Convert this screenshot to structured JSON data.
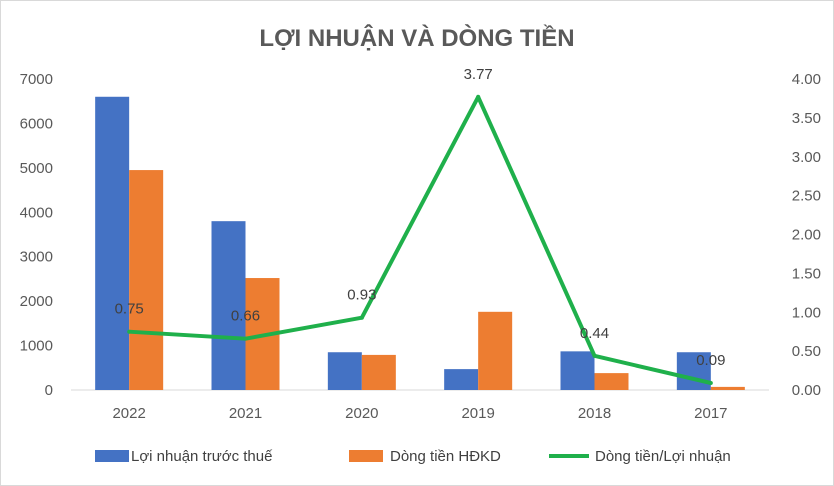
{
  "chart_data": {
    "type": "bar",
    "title": "LỢI NHUẬN VÀ DÒNG TIỀN",
    "categories": [
      "2022",
      "2021",
      "2020",
      "2019",
      "2018",
      "2017"
    ],
    "series": [
      {
        "name": "Lợi nhuận trước thuế",
        "type": "bar",
        "axis": "left",
        "color": "#4472c4",
        "values": [
          6600,
          3800,
          850,
          470,
          870,
          850
        ]
      },
      {
        "name": "Dòng tiền HĐKD",
        "type": "bar",
        "axis": "left",
        "color": "#ed7d31",
        "values": [
          4950,
          2520,
          790,
          1760,
          380,
          70
        ]
      },
      {
        "name": "Dòng tiền/Lợi nhuận",
        "type": "line",
        "axis": "right",
        "color": "#1fb04b",
        "values": [
          0.75,
          0.66,
          0.93,
          3.77,
          0.44,
          0.09
        ],
        "labels": [
          "0.75",
          "0.66",
          "0.93",
          "3.77",
          "0.44",
          "0.09"
        ]
      }
    ],
    "y_left": {
      "min": 0,
      "max": 7000,
      "ticks": [
        "0",
        "1000",
        "2000",
        "3000",
        "4000",
        "5000",
        "6000",
        "7000"
      ]
    },
    "y_right": {
      "min": 0,
      "max": 4,
      "ticks": [
        "0.00",
        "0.50",
        "1.00",
        "1.50",
        "2.00",
        "2.50",
        "3.00",
        "3.50",
        "4.00"
      ]
    },
    "grid": false,
    "legend_position": "bottom"
  }
}
